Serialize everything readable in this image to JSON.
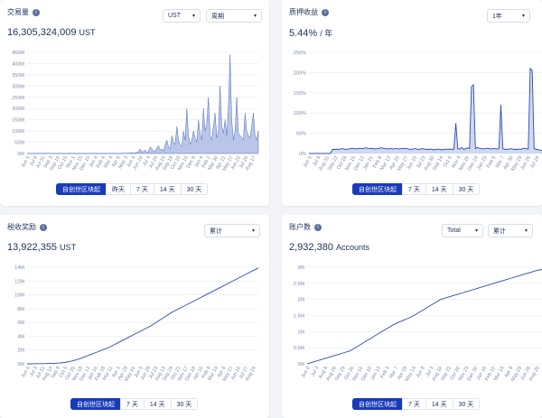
{
  "colors": {
    "line": "#2a4cb0",
    "fill": "#b3c0e6",
    "tab_active": "#1a3bb8",
    "grid": "#e6e9f0",
    "axis_text": "#7c89a8"
  },
  "volume": {
    "title": "交易量",
    "value": "16,305,324,009",
    "unit": "UST",
    "currency_select": "UST",
    "period_select": "周期",
    "tabs": [
      "自创世区块起",
      "昨天",
      "7 天",
      "14 天",
      "30 天"
    ],
    "y_ticks": [
      "450M",
      "400M",
      "350M",
      "300M",
      "250M",
      "200M",
      "150M",
      "100M",
      "50M",
      "0M"
    ],
    "x_ticks": [
      "Jun 5",
      "Jul 8",
      "Jul 31",
      "Sep 3",
      "Sep 16",
      "Oct 15",
      "Nov 1",
      "Nov 15",
      "Dec 15",
      "Jan 4",
      "Feb 4",
      "Mar 4",
      "Apr 8",
      "May 3",
      "Jun 4",
      "Jun 24",
      "Jul 4",
      "Jul 24",
      "Aug 15",
      "Sep 18",
      "Oct 10",
      "Nov 16",
      "Dec 8",
      "Jan 4",
      "Feb 2",
      "Mar 30",
      "Apr 21",
      "May 27",
      "Jun 22",
      "Jul 20",
      "Aug 17"
    ]
  },
  "yield": {
    "title": "质押收益",
    "value": "5.44%",
    "unit": "/ 年",
    "period_select": "1年",
    "tabs": [
      "自创世区块起",
      "7 天",
      "14 天",
      "30 天"
    ],
    "y_ticks": [
      "250%",
      "200%",
      "150%",
      "100%",
      "50%",
      "0%"
    ],
    "x_ticks": [
      "Jun 5",
      "Jul 8",
      "Aug 31",
      "Sep 22",
      "Oct 28",
      "Nov 15",
      "Dec 12",
      "Jan 21",
      "Feb 8",
      "Mar 13",
      "Apr 23",
      "May 27",
      "Jun 15",
      "Jul 23",
      "Aug 30",
      "Sep 14",
      "Oct 6",
      "Nov 4",
      "Nov 26",
      "Dec 24",
      "Jan 23",
      "Feb 5",
      "Mar 7",
      "Apr 30",
      "May 29",
      "Jun 26",
      "Jul 24"
    ]
  },
  "rewards": {
    "title": "税收奖励",
    "value": "13,922,355",
    "unit": "UST",
    "period_select": "累计",
    "tabs": [
      "自创世区块起",
      "7 天",
      "14 天",
      "30 天"
    ],
    "y_ticks": [
      "14M",
      "12M",
      "10M",
      "8M",
      "6M",
      "4M",
      "2M",
      "0M"
    ],
    "x_ticks": [
      "Jun 6",
      "Jul 3",
      "Jul 31",
      "Aug 14",
      "Sep 8",
      "Oct 5",
      "Oct 25",
      "Nov 18",
      "Dec 12",
      "Jan 16",
      "Feb 18",
      "Mar 11",
      "Apr 1",
      "Apr 29",
      "May 16",
      "Jun 5",
      "Jun 29",
      "Jul 23",
      "Aug 13",
      "Sep 24",
      "Oct 21",
      "Nov 17",
      "Dec 18",
      "Jan 16",
      "Feb 9",
      "Mar 19",
      "Apr 8",
      "May 27",
      "Jun 16",
      "Jul 27",
      "Aug 24"
    ]
  },
  "accounts": {
    "title": "账户数",
    "value": "2,932,380",
    "unit": "Accounts",
    "type_select": "Total",
    "period_select": "累计",
    "tabs": [
      "自创世区块起",
      "7 天",
      "14 天",
      "30 天"
    ],
    "y_ticks": [
      "3M",
      "2.5M",
      "2M",
      "1.5M",
      "1M",
      "0.5M",
      "0M"
    ],
    "x_ticks": [
      "Jun 6",
      "Jul 3",
      "Aug 8",
      "Aug 26",
      "Sep 29",
      "Oct 26",
      "Nov 16",
      "Dec 10",
      "Jan 13",
      "Feb 3",
      "Mar 7",
      "Apr 29",
      "May 14",
      "Jun 8",
      "Jul 3",
      "Aug 16",
      "Sep 22",
      "Oct 20",
      "Nov 23",
      "Dec 30",
      "Jan 16",
      "Feb 10",
      "Mar 14",
      "Apr 8",
      "May 29",
      "Jun 28",
      "Aug 25"
    ]
  },
  "chart_data": [
    {
      "type": "area",
      "title": "交易量",
      "ylim": [
        0,
        450000000
      ],
      "values_M": [
        0,
        0,
        0,
        0,
        0,
        0,
        0,
        0,
        0,
        0,
        0,
        0,
        0,
        0,
        0,
        0,
        0,
        0,
        0,
        0,
        0,
        0,
        0,
        0,
        0,
        0,
        0,
        0,
        0,
        0,
        0,
        0,
        0,
        0,
        0,
        0,
        0,
        0,
        0,
        0,
        0,
        0,
        0,
        0,
        0,
        0,
        0,
        0,
        0,
        0,
        0,
        0,
        0,
        0,
        0,
        0,
        0,
        0,
        1,
        1,
        1,
        2,
        2,
        3,
        2,
        3,
        5,
        8,
        20,
        6,
        10,
        15,
        5,
        10,
        30,
        20,
        12,
        8,
        25,
        35,
        15,
        20,
        10,
        40,
        60,
        30,
        20,
        80,
        50,
        40,
        120,
        60,
        40,
        30,
        100,
        60,
        200,
        80,
        40,
        60,
        100,
        70,
        50,
        150,
        90,
        60,
        200,
        100,
        130,
        250,
        80,
        60,
        120,
        180,
        70,
        100,
        300,
        120,
        90,
        150,
        80,
        200,
        440,
        150,
        60,
        100,
        250,
        90,
        80,
        70,
        60,
        180,
        100,
        80,
        70,
        120,
        180,
        80,
        60,
        100
      ]
    },
    {
      "type": "line",
      "title": "质押收益",
      "ylim": [
        0,
        250
      ],
      "values": [
        0,
        0,
        0,
        0,
        0,
        0,
        0,
        0,
        0,
        0,
        0,
        0,
        10,
        10,
        11,
        10,
        11,
        12,
        11,
        10,
        11,
        12,
        13,
        12,
        11,
        12,
        13,
        12,
        13,
        14,
        13,
        12,
        13,
        12,
        11,
        12,
        13,
        14,
        13,
        12,
        11,
        12,
        12,
        11,
        12,
        12,
        11,
        12,
        12,
        13,
        12,
        11,
        10,
        11,
        12,
        11,
        10,
        11,
        12,
        11,
        10,
        10,
        11,
        10,
        9,
        10,
        11,
        10,
        9,
        10,
        11,
        10,
        11,
        10,
        11,
        75,
        12,
        11,
        15,
        10,
        12,
        14,
        12,
        165,
        170,
        12,
        15,
        13,
        12,
        11,
        12,
        13,
        12,
        11,
        12,
        12,
        11,
        12,
        120,
        12,
        10,
        11,
        10,
        12,
        11,
        10,
        10,
        11,
        10,
        12,
        13,
        12,
        11,
        210,
        205,
        12,
        10,
        10,
        8,
        8
      ]
    },
    {
      "type": "line",
      "title": "税收奖励",
      "ylim": [
        0,
        14000000
      ],
      "values_M": [
        0,
        0.01,
        0.02,
        0.03,
        0.05,
        0.08,
        0.12,
        0.2,
        0.35,
        0.55,
        0.8,
        1.1,
        1.4,
        1.7,
        2.0,
        2.3,
        2.7,
        3.1,
        3.5,
        3.9,
        4.3,
        4.7,
        5.1,
        5.5,
        6.0,
        6.5,
        7.0,
        7.5,
        7.9,
        8.3,
        8.7,
        9.1,
        9.5,
        9.9,
        10.3,
        10.7,
        11.1,
        11.5,
        11.9,
        12.3,
        12.7,
        13.1,
        13.5,
        13.9
      ]
    },
    {
      "type": "line",
      "title": "账户数",
      "ylim": [
        0,
        3000000
      ],
      "values_M": [
        0,
        0.05,
        0.1,
        0.15,
        0.2,
        0.25,
        0.3,
        0.35,
        0.4,
        0.5,
        0.6,
        0.7,
        0.8,
        0.9,
        1.0,
        1.1,
        1.2,
        1.28,
        1.35,
        1.42,
        1.5,
        1.6,
        1.7,
        1.8,
        1.9,
        2.0,
        2.05,
        2.1,
        2.15,
        2.2,
        2.25,
        2.3,
        2.35,
        2.4,
        2.45,
        2.5,
        2.55,
        2.6,
        2.65,
        2.7,
        2.75,
        2.8,
        2.85,
        2.9,
        2.93
      ]
    }
  ]
}
